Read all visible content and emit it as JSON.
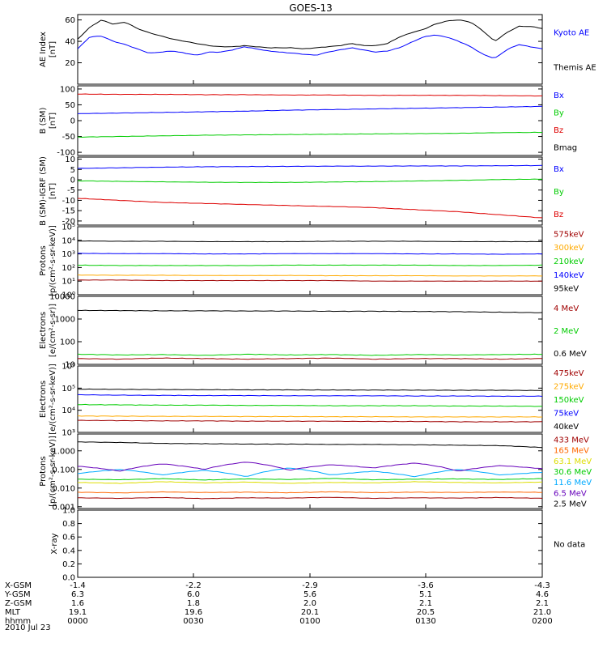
{
  "title": "GOES-13",
  "date_label": "2010 Jul 23",
  "colors": {
    "black": "#000000",
    "blue": "#0000ff",
    "green": "#00cc00",
    "red": "#dd0000",
    "darkred": "#a00000",
    "orange": "#ffaa00",
    "yellow": "#dddd00",
    "cyan": "#00aaff",
    "purple": "#6600bb",
    "teal": "#00c8c8"
  },
  "ephemeris": {
    "rows": [
      {
        "label": "X-GSM",
        "values": [
          "-1.4",
          "-2.2",
          "-2.9",
          "-3.6",
          "-4.3"
        ]
      },
      {
        "label": "Y-GSM",
        "values": [
          "6.3",
          "6.0",
          "5.6",
          "5.1",
          "4.6"
        ]
      },
      {
        "label": "Z-GSM",
        "values": [
          "1.6",
          "1.8",
          "2.0",
          "2.1",
          "2.1"
        ]
      },
      {
        "label": "MLT",
        "values": [
          "19.1",
          "19.6",
          "20.1",
          "20.5",
          "21.0"
        ]
      },
      {
        "label": "hhmm",
        "values": [
          "0000",
          "0030",
          "0100",
          "0130",
          "0200"
        ]
      }
    ]
  },
  "chart_data": [
    {
      "type": "line",
      "ylabel": "AE Index\n[nT]",
      "scale": "linear",
      "ylim": [
        0,
        65
      ],
      "ticks": [
        {
          "v": 20,
          "label": "20"
        },
        {
          "v": 40,
          "label": "40"
        },
        {
          "v": 60,
          "label": "60"
        }
      ],
      "series": [
        {
          "name": "Kyoto AE",
          "color": "#0000ff",
          "values": [
            33,
            44,
            45,
            40,
            37,
            33,
            29,
            30,
            31,
            29,
            27,
            30,
            30,
            32,
            35,
            33,
            31,
            30,
            29,
            28,
            27,
            30,
            32,
            34,
            32,
            30,
            31,
            34,
            39,
            44,
            46,
            44,
            40,
            35,
            28,
            24,
            32,
            37,
            35,
            33
          ]
        },
        {
          "name": "Themis AE",
          "color": "#000000",
          "values": [
            42,
            53,
            60,
            56,
            58,
            52,
            48,
            45,
            42,
            40,
            38,
            36,
            35,
            35,
            36,
            35,
            34,
            34,
            34,
            33,
            34,
            35,
            36,
            38,
            36,
            36,
            38,
            44,
            48,
            51,
            56,
            59,
            60,
            58,
            50,
            40,
            48,
            54,
            54,
            52
          ]
        }
      ]
    },
    {
      "type": "line",
      "ylabel": "B (SM)\n[nT]",
      "scale": "linear",
      "ylim": [
        -110,
        110
      ],
      "ticks": [
        {
          "v": -100,
          "label": "-100"
        },
        {
          "v": -50,
          "label": "-50"
        },
        {
          "v": 0,
          "label": "0"
        },
        {
          "v": 50,
          "label": "50"
        },
        {
          "v": 100,
          "label": "100"
        }
      ],
      "series": [
        {
          "name": "Bx",
          "color": "#0000ff",
          "values": [
            22,
            24,
            26,
            28,
            30,
            33,
            35,
            37,
            39,
            41,
            43,
            45
          ]
        },
        {
          "name": "By",
          "color": "#00cc00",
          "values": [
            -52,
            -50,
            -48,
            -46,
            -45,
            -44,
            -43,
            -42,
            -41,
            -40,
            -38,
            -37
          ]
        },
        {
          "name": "Bz",
          "color": "#dd0000",
          "values": [
            84,
            83,
            83,
            82,
            82,
            81,
            81,
            80,
            80,
            80,
            79,
            78
          ]
        },
        {
          "name": "Bmag",
          "color": "#000000",
          "values": []
        }
      ]
    },
    {
      "type": "line",
      "ylabel": "B (SM)-IGRF (SM)\n[nT]",
      "scale": "linear",
      "ylim": [
        -22,
        11
      ],
      "ticks": [
        {
          "v": -20,
          "label": "-20"
        },
        {
          "v": -15,
          "label": "-15"
        },
        {
          "v": -10,
          "label": "-10"
        },
        {
          "v": -5,
          "label": "-5"
        },
        {
          "v": 0,
          "label": "0"
        },
        {
          "v": 5,
          "label": "5"
        },
        {
          "v": 10,
          "label": "10"
        }
      ],
      "series": [
        {
          "name": "Bx",
          "color": "#0000ff",
          "values": [
            5.5,
            5.8,
            6.1,
            6.3,
            6.4,
            6.5,
            6.6,
            6.6,
            6.7,
            6.7,
            6.8,
            6.9
          ]
        },
        {
          "name": "By",
          "color": "#00cc00",
          "values": [
            -0.5,
            -0.8,
            -1.0,
            -1.2,
            -1.3,
            -1.3,
            -1.1,
            -0.9,
            -0.6,
            -0.3,
            0.1,
            0.3
          ]
        },
        {
          "name": "Bz",
          "color": "#dd0000",
          "values": [
            -9,
            -10,
            -11,
            -11.5,
            -12,
            -12.5,
            -13,
            -13.5,
            -14.5,
            -15.5,
            -17,
            -18.5
          ]
        }
      ]
    },
    {
      "type": "line",
      "ylabel": "Protons\n[p/(cm²-s-sr-keV)]",
      "scale": "log",
      "ylim": [
        1,
        100000
      ],
      "ticks": [
        {
          "v": 1,
          "label": "10⁰"
        },
        {
          "v": 10,
          "label": "10¹"
        },
        {
          "v": 100,
          "label": "10²"
        },
        {
          "v": 1000,
          "label": "10³"
        },
        {
          "v": 10000,
          "label": "10⁴"
        },
        {
          "v": 100000,
          "label": "10⁵"
        }
      ],
      "series": [
        {
          "name": "575keV",
          "color": "#a00000",
          "values": [
            12,
            12,
            11,
            11,
            11,
            11,
            11,
            10,
            10,
            10,
            10,
            10
          ]
        },
        {
          "name": "300keV",
          "color": "#ffaa00",
          "values": [
            28,
            27,
            27,
            26,
            26,
            26,
            25,
            25,
            25,
            24,
            24,
            24
          ]
        },
        {
          "name": "210keV",
          "color": "#00cc00",
          "values": [
            150,
            140,
            140,
            140,
            140,
            150,
            150,
            150,
            150,
            140,
            140,
            150
          ]
        },
        {
          "name": "140keV",
          "color": "#0000ff",
          "values": [
            1100,
            1050,
            1050,
            1000,
            1000,
            1050,
            1050,
            1050,
            1000,
            1000,
            950,
            1000
          ]
        },
        {
          "name": "95keV",
          "color": "#000000",
          "values": [
            9000,
            8500,
            8500,
            8000,
            8000,
            8000,
            8500,
            8500,
            8500,
            8000,
            8000,
            8000
          ]
        }
      ]
    },
    {
      "type": "line",
      "ylabel": "Electrons\n[e/(cm²-s-sr)]",
      "scale": "log",
      "ylim": [
        10,
        10000
      ],
      "ticks": [
        {
          "v": 10,
          "label": "10"
        },
        {
          "v": 100,
          "label": "100"
        },
        {
          "v": 1000,
          "label": "1000"
        },
        {
          "v": 10000,
          "label": "10000"
        }
      ],
      "series": [
        {
          "name": "4 MeV",
          "color": "#a00000",
          "values": [
            18,
            17,
            19,
            18,
            17,
            18,
            19,
            17,
            18,
            18,
            17,
            18
          ]
        },
        {
          "name": "2 MeV",
          "color": "#00cc00",
          "values": [
            28,
            26,
            27,
            25,
            28,
            26,
            27,
            25,
            27,
            26,
            27,
            28
          ]
        },
        {
          "name": "0.6 MeV",
          "color": "#000000",
          "values": [
            2400,
            2350,
            2300,
            2300,
            2250,
            2250,
            2200,
            2200,
            2150,
            2100,
            2000,
            1900
          ]
        }
      ]
    },
    {
      "type": "line",
      "ylabel": "Electrons\n[e/(cm²-s-sr-keV)]",
      "scale": "log",
      "ylim": [
        1000,
        1000000
      ],
      "ticks": [
        {
          "v": 1000,
          "label": "10³"
        },
        {
          "v": 10000,
          "label": "10⁴"
        },
        {
          "v": 100000,
          "label": "10⁵"
        },
        {
          "v": 1000000,
          "label": "10⁶"
        }
      ],
      "series": [
        {
          "name": "475keV",
          "color": "#a00000",
          "values": [
            3500,
            3400,
            3300,
            3300,
            3200,
            3200,
            3200,
            3100,
            3100,
            3000,
            3000,
            3000
          ]
        },
        {
          "name": "275keV",
          "color": "#ffaa00",
          "values": [
            5500,
            5400,
            5300,
            5300,
            5200,
            5200,
            5100,
            5100,
            5000,
            5000,
            5000,
            5000
          ]
        },
        {
          "name": "150keV",
          "color": "#00cc00",
          "values": [
            18000,
            17500,
            17000,
            17000,
            16500,
            16500,
            16000,
            16000,
            16000,
            15500,
            15500,
            15000
          ]
        },
        {
          "name": "75keV",
          "color": "#0000ff",
          "values": [
            50000,
            48000,
            47000,
            46000,
            46000,
            45000,
            45000,
            45000,
            44000,
            44000,
            43000,
            43000
          ]
        },
        {
          "name": "40keV",
          "color": "#000000",
          "values": [
            90000,
            88000,
            86000,
            85000,
            84000,
            83000,
            82000,
            82000,
            81000,
            80000,
            80000,
            78000
          ]
        }
      ]
    },
    {
      "type": "line",
      "ylabel": "Protons\n[p/(cm²-s-sr-keV)]",
      "scale": "log",
      "ylim": [
        0.0008,
        8
      ],
      "ticks": [
        {
          "v": 0.001,
          "label": "0.001"
        },
        {
          "v": 0.01,
          "label": "0.010"
        },
        {
          "v": 0.1,
          "label": "0.100"
        },
        {
          "v": 1,
          "label": "1.000"
        }
      ],
      "series": [
        {
          "name": "433 MeV",
          "color": "#a00000",
          "values": [
            0.003,
            0.0028,
            0.0031,
            0.0027,
            0.003,
            0.0029,
            0.0032,
            0.0028,
            0.003,
            0.0029,
            0.0031,
            0.0028
          ]
        },
        {
          "name": "165 MeV",
          "color": "#ff6600",
          "values": [
            0.006,
            0.0055,
            0.0062,
            0.0058,
            0.006,
            0.0056,
            0.0063,
            0.0057,
            0.006,
            0.0058,
            0.0061,
            0.0059
          ]
        },
        {
          "name": "63.1 MeV",
          "color": "#dddd00",
          "values": [
            0.02,
            0.018,
            0.022,
            0.019,
            0.021,
            0.018,
            0.02,
            0.019,
            0.022,
            0.02,
            0.019,
            0.021
          ]
        },
        {
          "name": "30.6 MeV",
          "color": "#00cc00",
          "values": [
            0.03,
            0.028,
            0.032,
            0.027,
            0.031,
            0.029,
            0.033,
            0.028,
            0.03,
            0.031,
            0.029,
            0.032
          ]
        },
        {
          "name": "11.6 MeV",
          "color": "#00aaff",
          "values": [
            0.06,
            0.1,
            0.05,
            0.09,
            0.04,
            0.12,
            0.05,
            0.08,
            0.04,
            0.1,
            0.05,
            0.07
          ]
        },
        {
          "name": "6.5 MeV",
          "color": "#6600bb",
          "values": [
            0.15,
            0.08,
            0.2,
            0.1,
            0.25,
            0.09,
            0.18,
            0.12,
            0.22,
            0.08,
            0.16,
            0.11
          ]
        },
        {
          "name": "2.5 MeV",
          "color": "#000000",
          "values": [
            3.0,
            2.8,
            2.5,
            2.4,
            2.3,
            2.3,
            2.2,
            2.2,
            2.1,
            2.0,
            1.9,
            1.5
          ]
        }
      ]
    },
    {
      "type": "line",
      "ylabel": "X-ray",
      "scale": "linear",
      "ylim": [
        0,
        1
      ],
      "ticks": [
        {
          "v": 0.0,
          "label": "0.0"
        },
        {
          "v": 0.2,
          "label": "0.2"
        },
        {
          "v": 0.4,
          "label": "0.4"
        },
        {
          "v": 0.6,
          "label": "0.6"
        },
        {
          "v": 0.8,
          "label": "0.8"
        },
        {
          "v": 1.0,
          "label": "1.0"
        }
      ],
      "note": "No data",
      "series": []
    }
  ]
}
